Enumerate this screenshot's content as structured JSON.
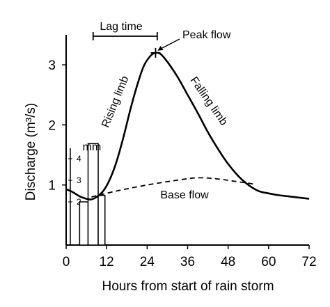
{
  "chart_data": {
    "type": "line",
    "xlabel": "Hours from start of rain storm",
    "ylabel": "Discharge (m³/s)",
    "xlim": [
      0,
      72
    ],
    "ylim": [
      0,
      3.5
    ],
    "x_ticks": [
      0,
      12,
      24,
      36,
      48,
      60,
      72
    ],
    "y_ticks": [
      1,
      2,
      3
    ],
    "series": [
      {
        "name": "",
        "style": "solid",
        "x": [
          0,
          2,
          4,
          6,
          7.5,
          9,
          11,
          13,
          15,
          17,
          19,
          21,
          23,
          25,
          26.5,
          28,
          30,
          33,
          36,
          39,
          42,
          45,
          48,
          51,
          54,
          57,
          60,
          63,
          66,
          69,
          72
        ],
        "y": [
          0.93,
          0.88,
          0.81,
          0.77,
          0.76,
          0.8,
          0.9,
          1.1,
          1.4,
          1.8,
          2.25,
          2.65,
          2.98,
          3.15,
          3.2,
          3.18,
          3.05,
          2.8,
          2.5,
          2.2,
          1.88,
          1.6,
          1.35,
          1.15,
          1.0,
          0.9,
          0.86,
          0.83,
          0.81,
          0.79,
          0.77
        ]
      },
      {
        "name": "Base flow",
        "style": "dashed",
        "x": [
          7.5,
          15,
          24,
          33,
          39,
          45,
          50,
          54,
          56
        ],
        "y": [
          0.8,
          0.9,
          1.0,
          1.08,
          1.12,
          1.1,
          1.06,
          1.03,
          1.01
        ]
      }
    ],
    "rainfall": {
      "unit_label": "mm",
      "scale_ticks": [
        "2",
        "3",
        "4"
      ],
      "bars": [
        {
          "x0": 4,
          "x1": 6.5,
          "value": 2.0
        },
        {
          "x0": 6.5,
          "x1": 9.5,
          "value": 4.7
        },
        {
          "x0": 9.5,
          "x1": 11.5,
          "value": 2.3
        }
      ]
    },
    "annotations": {
      "lag_time": "Lag time",
      "peak_flow": "Peak flow",
      "rising_limb": "Rising limb",
      "falling_limb": "Falling limb",
      "base_flow": "Base flow"
    },
    "lag_time_range": [
      8,
      27
    ],
    "peak": {
      "x": 26.5,
      "y": 3.2
    }
  }
}
